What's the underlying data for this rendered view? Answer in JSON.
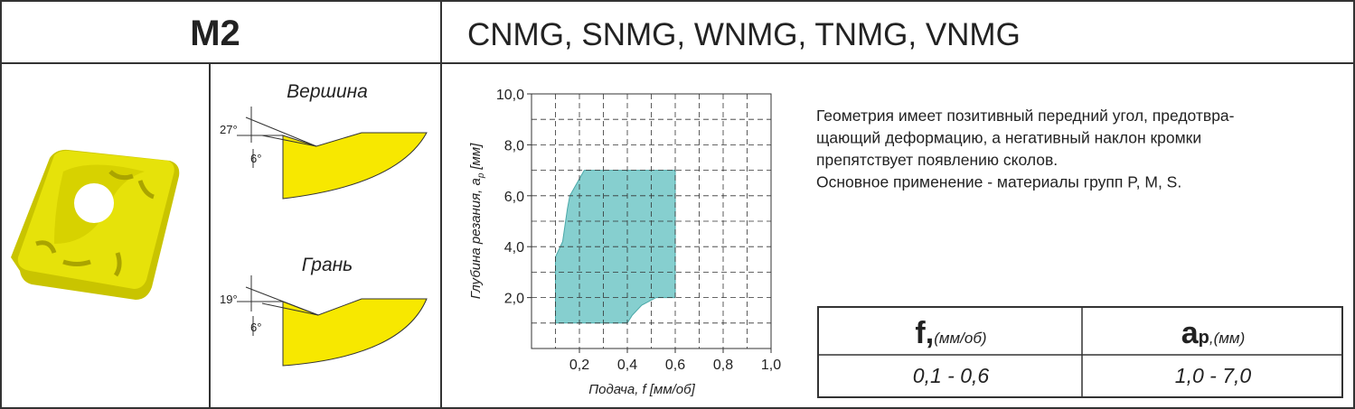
{
  "header": {
    "title": "M2",
    "subtitle": "CNMG, SNMG, WNMG, TNMG, VNMG"
  },
  "geometry": {
    "corner": {
      "label": "Вершина",
      "angle_top": "27°",
      "angle_bottom": "6°"
    },
    "edge": {
      "label": "Грань",
      "angle_top": "19°",
      "angle_bottom": "6°"
    }
  },
  "chart_data": {
    "type": "area",
    "x_label": "Подача, f [мм/об]",
    "y_label": {
      "main": "Глубина резания, a",
      "sub": "p",
      "unit": "[мм]"
    },
    "x": [
      0.1,
      0.1,
      0.13,
      0.15,
      0.16,
      0.22,
      0.6,
      0.6,
      0.52,
      0.46,
      0.42,
      0.4,
      0.1
    ],
    "y": [
      1.0,
      3.6,
      4.2,
      5.5,
      6.0,
      7.0,
      7.0,
      2.0,
      2.0,
      1.7,
      1.3,
      1.0,
      1.0
    ],
    "color": "#86cfcf",
    "xlim": [
      0,
      1
    ],
    "ylim": [
      0,
      10
    ],
    "xticks": [
      {
        "value": 0.2,
        "label": "0,2"
      },
      {
        "value": 0.4,
        "label": "0,4"
      },
      {
        "value": 0.6,
        "label": "0,6"
      },
      {
        "value": 0.8,
        "label": "0,8"
      },
      {
        "value": 1.0,
        "label": "1,0"
      }
    ],
    "yticks": [
      {
        "value": 2,
        "label": "2,0"
      },
      {
        "value": 4,
        "label": "4,0"
      },
      {
        "value": 6,
        "label": "6,0"
      },
      {
        "value": 8,
        "label": "8,0"
      },
      {
        "value": 10,
        "label": "10,0"
      }
    ],
    "grid": true,
    "xgrid": [
      0.1,
      0.2,
      0.3,
      0.4,
      0.5,
      0.6,
      0.7,
      0.8,
      0.9
    ],
    "ygrid": [
      1,
      2,
      3,
      4,
      5,
      6,
      7,
      8,
      9
    ]
  },
  "description": [
    "Геометрия имеет позитивный передний угол, предотвра-",
    "щающий деформацию, а негативный наклон кромки",
    "препятствует появлению сколов.",
    "Основное применение - материалы групп P, M, S."
  ],
  "table": {
    "header": [
      {
        "main": "f,",
        "unit": "(мм/об)"
      },
      {
        "main": "a",
        "sub": "p",
        "unit": ",(мм)"
      }
    ],
    "rows": [
      [
        "0,1 - 0,6",
        "1,0 - 7,0"
      ]
    ]
  }
}
